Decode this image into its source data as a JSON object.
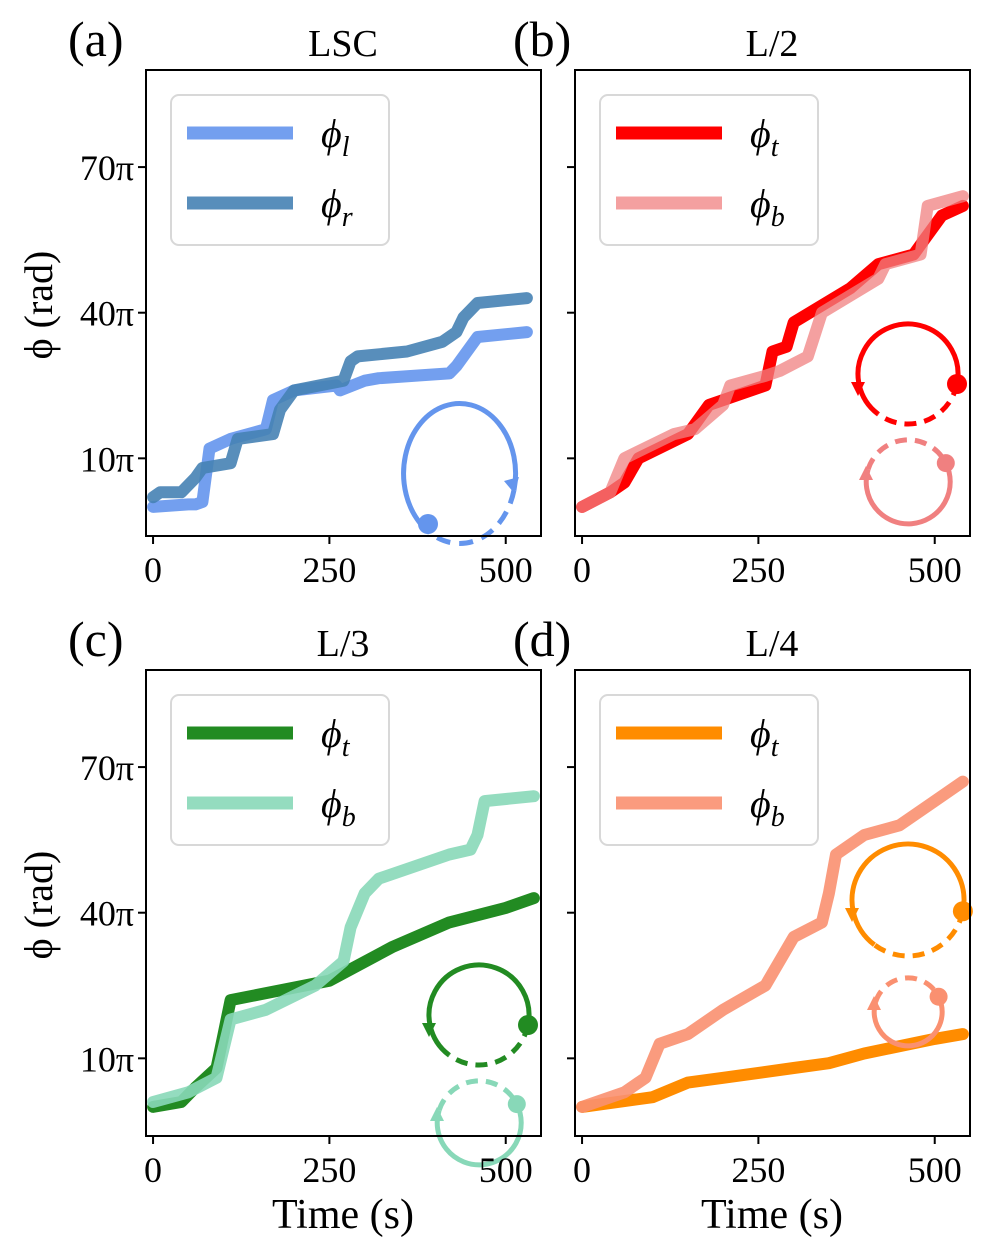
{
  "figure": {
    "shared_ylabel": "ϕ (rad)",
    "shared_xlabel": "Time (s)",
    "ytick_labels": [
      "10π",
      "40π",
      "70π"
    ],
    "xtick_labels": [
      "0",
      "250",
      "500"
    ]
  },
  "chart_data": [
    {
      "panel_label": "(a)",
      "type": "line",
      "title": "LSC",
      "xlabel": "",
      "ylabel": "ϕ (rad)",
      "xlim": [
        -10,
        550
      ],
      "ylim": [
        -6,
        90
      ],
      "yticks": [
        10,
        40,
        70
      ],
      "xticks": [
        0,
        250,
        500
      ],
      "legend": {
        "placement": "top-left"
      },
      "inset": {
        "kind": "single-loop",
        "colors": [
          "#6495ED"
        ]
      },
      "series": [
        {
          "name": "ϕ",
          "subscript": "l",
          "color": "#6495ED",
          "opacity": 0.9,
          "x": [
            0,
            50,
            60,
            70,
            80,
            110,
            160,
            170,
            200,
            260,
            265,
            300,
            320,
            420,
            430,
            460,
            530
          ],
          "y": [
            0,
            0.5,
            0.5,
            1,
            12,
            14,
            16,
            22,
            24,
            25,
            24,
            26,
            26.5,
            27.5,
            29,
            35,
            36
          ]
        },
        {
          "name": "ϕ",
          "subscript": "r",
          "color": "#4682B4",
          "opacity": 0.9,
          "x": [
            0,
            10,
            40,
            60,
            70,
            110,
            120,
            170,
            180,
            200,
            270,
            280,
            290,
            360,
            410,
            430,
            440,
            460,
            530
          ],
          "y": [
            2,
            3,
            3,
            6,
            8,
            9,
            14,
            15,
            20,
            24,
            26,
            30,
            31,
            32,
            34,
            36,
            39,
            42,
            43
          ]
        }
      ]
    },
    {
      "panel_label": "(b)",
      "type": "line",
      "title": "L/2",
      "xlabel": "",
      "ylabel": "",
      "xlim": [
        -10,
        550
      ],
      "ylim": [
        -6,
        90
      ],
      "yticks": [
        10,
        40,
        70
      ],
      "xticks": [
        0,
        250,
        500
      ],
      "legend": {
        "placement": "top-left"
      },
      "inset": {
        "kind": "double-loop",
        "colors": [
          "#FF0000",
          "#F08080"
        ]
      },
      "series": [
        {
          "name": "ϕ",
          "subscript": "t",
          "color": "#FF0000",
          "opacity": 1,
          "x": [
            0,
            40,
            60,
            80,
            150,
            180,
            260,
            270,
            290,
            300,
            380,
            420,
            470,
            480,
            490,
            510,
            540
          ],
          "y": [
            0,
            3,
            5,
            10,
            15,
            21,
            25,
            32,
            33,
            38,
            45,
            50,
            52,
            54,
            56,
            60,
            62
          ]
        },
        {
          "name": "ϕ",
          "subscript": "b",
          "color": "#F08080",
          "opacity": 0.75,
          "x": [
            0,
            40,
            60,
            130,
            160,
            200,
            210,
            260,
            280,
            320,
            340,
            420,
            430,
            480,
            490,
            540
          ],
          "y": [
            0,
            3,
            10,
            15,
            16,
            21,
            25,
            27,
            28,
            31,
            40,
            47,
            50,
            52,
            62,
            64
          ]
        }
      ]
    },
    {
      "panel_label": "(c)",
      "type": "line",
      "title": "L/3",
      "xlabel": "Time (s)",
      "ylabel": "ϕ (rad)",
      "xlim": [
        -10,
        550
      ],
      "ylim": [
        -6,
        90
      ],
      "yticks": [
        10,
        40,
        70
      ],
      "xticks": [
        0,
        250,
        500
      ],
      "legend": {
        "placement": "top-left"
      },
      "inset": {
        "kind": "double-loop",
        "colors": [
          "#228B22",
          "#88D8B8"
        ]
      },
      "series": [
        {
          "name": "ϕ",
          "subscript": "t",
          "color": "#228B22",
          "opacity": 1,
          "x": [
            0,
            40,
            60,
            90,
            100,
            110,
            180,
            250,
            340,
            420,
            500,
            540
          ],
          "y": [
            0,
            1,
            4,
            8,
            15,
            22,
            24,
            26,
            33,
            38,
            41,
            43
          ]
        },
        {
          "name": "ϕ",
          "subscript": "b",
          "color": "#88D8B8",
          "opacity": 0.9,
          "x": [
            0,
            50,
            90,
            100,
            110,
            160,
            230,
            270,
            280,
            300,
            320,
            420,
            450,
            460,
            470,
            540
          ],
          "y": [
            1,
            3,
            6,
            12,
            18,
            20,
            25,
            30,
            37,
            44,
            47,
            52,
            53,
            56,
            63,
            64
          ]
        }
      ]
    },
    {
      "panel_label": "(d)",
      "type": "line",
      "title": "L/4",
      "xlabel": "Time (s)",
      "ylabel": "",
      "xlim": [
        -10,
        550
      ],
      "ylim": [
        -6,
        90
      ],
      "yticks": [
        10,
        40,
        70
      ],
      "xticks": [
        0,
        250,
        500
      ],
      "legend": {
        "placement": "top-left"
      },
      "inset": {
        "kind": "double-loop",
        "colors": [
          "#FF8C00",
          "#FA9070"
        ]
      },
      "series": [
        {
          "name": "ϕ",
          "subscript": "t",
          "color": "#FF8C00",
          "opacity": 1,
          "x": [
            0,
            100,
            150,
            200,
            300,
            350,
            400,
            500,
            540
          ],
          "y": [
            0,
            2,
            5,
            6,
            8,
            9,
            11,
            14,
            15
          ]
        },
        {
          "name": "ϕ",
          "subscript": "b",
          "color": "#FA9070",
          "opacity": 0.9,
          "x": [
            0,
            60,
            90,
            110,
            150,
            200,
            260,
            300,
            340,
            350,
            360,
            400,
            450,
            500,
            540
          ],
          "y": [
            0,
            3,
            6,
            13,
            15,
            20,
            25,
            35,
            38,
            44,
            52,
            56,
            58,
            63,
            67
          ]
        }
      ]
    }
  ]
}
